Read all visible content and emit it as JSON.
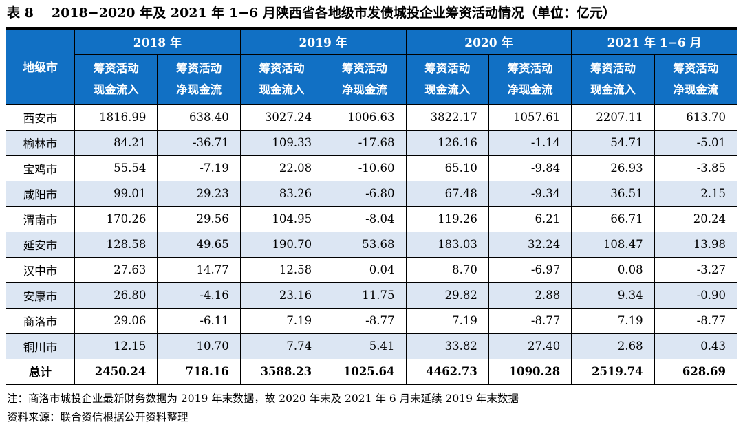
{
  "title": {
    "prefix": "表 8",
    "text": "2018−2020 年及 2021 年 1−6 月陕西省各地级市发债城投企业筹资活动情况（单位：亿元）"
  },
  "table": {
    "corner_header": "地级市",
    "year_groups": [
      "2018 年",
      "2019 年",
      "2020 年",
      "2021 年 1−6 月"
    ],
    "sub_inflow": {
      "line1": "筹资活动",
      "line2": "现金流入"
    },
    "sub_net": {
      "line1": "筹资活动",
      "line2": "净现金流"
    },
    "rows": [
      {
        "city": "西安市",
        "values": [
          "1816.99",
          "638.40",
          "3027.24",
          "1006.63",
          "3822.17",
          "1057.61",
          "2207.11",
          "613.70"
        ],
        "stripe": false,
        "total": false
      },
      {
        "city": "榆林市",
        "values": [
          "84.21",
          "-36.71",
          "109.33",
          "-17.68",
          "126.16",
          "-1.14",
          "54.71",
          "-5.01"
        ],
        "stripe": true,
        "total": false
      },
      {
        "city": "宝鸡市",
        "values": [
          "55.54",
          "-7.19",
          "22.08",
          "-10.60",
          "65.10",
          "-9.84",
          "26.93",
          "-3.85"
        ],
        "stripe": false,
        "total": false
      },
      {
        "city": "咸阳市",
        "values": [
          "99.01",
          "29.23",
          "83.26",
          "-6.80",
          "67.48",
          "-9.34",
          "36.51",
          "2.15"
        ],
        "stripe": true,
        "total": false
      },
      {
        "city": "渭南市",
        "values": [
          "170.26",
          "29.56",
          "104.95",
          "-8.04",
          "119.26",
          "6.21",
          "66.71",
          "20.24"
        ],
        "stripe": false,
        "total": false
      },
      {
        "city": "延安市",
        "values": [
          "128.58",
          "49.65",
          "190.70",
          "53.68",
          "183.03",
          "32.24",
          "108.47",
          "13.98"
        ],
        "stripe": true,
        "total": false
      },
      {
        "city": "汉中市",
        "values": [
          "27.63",
          "14.77",
          "12.58",
          "0.04",
          "8.70",
          "-6.97",
          "0.08",
          "-3.27"
        ],
        "stripe": false,
        "total": false
      },
      {
        "city": "安康市",
        "values": [
          "26.80",
          "-4.16",
          "23.16",
          "11.75",
          "29.82",
          "2.88",
          "9.34",
          "-0.90"
        ],
        "stripe": true,
        "total": false
      },
      {
        "city": "商洛市",
        "values": [
          "29.06",
          "-6.11",
          "7.19",
          "-8.77",
          "7.19",
          "-8.77",
          "7.19",
          "-8.77"
        ],
        "stripe": false,
        "total": false
      },
      {
        "city": "铜川市",
        "values": [
          "12.15",
          "10.70",
          "7.74",
          "5.41",
          "33.82",
          "27.40",
          "2.68",
          "0.43"
        ],
        "stripe": true,
        "total": false
      },
      {
        "city": "总计",
        "values": [
          "2450.24",
          "718.16",
          "3588.23",
          "1025.64",
          "4462.73",
          "1090.28",
          "2519.74",
          "628.69"
        ],
        "stripe": false,
        "total": true
      }
    ]
  },
  "notes": {
    "note": "注：商洛市城投企业最新财务数据为 2019 年末数据，故 2020 年末及 2021 年 6 月末延续 2019 年末数据",
    "source": "资料来源：联合资信根据公开资料整理"
  },
  "colors": {
    "header_bg": "#1170C4",
    "stripe_bg": "#DCE6F3",
    "border": "#000000",
    "header_text": "#FFFFFF"
  }
}
